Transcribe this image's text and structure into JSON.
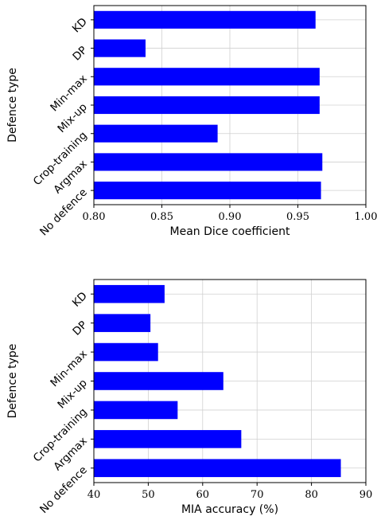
{
  "chart_data": [
    {
      "type": "bar",
      "orientation": "horizontal",
      "categories": [
        "KD",
        "DP",
        "Min-max",
        "Mix-up",
        "Crop-training",
        "Argmax",
        "No defence"
      ],
      "values": [
        0.963,
        0.838,
        0.966,
        0.966,
        0.891,
        0.968,
        0.967
      ],
      "xlim": [
        0.8,
        1.0
      ],
      "xticks": [
        0.8,
        0.85,
        0.9,
        0.95,
        1.0
      ],
      "xtick_labels": [
        "0.80",
        "0.85",
        "0.90",
        "0.95",
        "1.00"
      ],
      "xlabel": "Mean Dice coefficient",
      "ylabel": "Defence type",
      "grid": true,
      "bar_color": "#0000ff"
    },
    {
      "type": "bar",
      "orientation": "horizontal",
      "categories": [
        "KD",
        "DP",
        "Min-max",
        "Mix-up",
        "Crop-training",
        "Argmax",
        "No defence"
      ],
      "values": [
        53.0,
        50.4,
        51.8,
        63.8,
        55.4,
        67.1,
        85.4
      ],
      "xlim": [
        40,
        90
      ],
      "xticks": [
        40,
        50,
        60,
        70,
        80,
        90
      ],
      "xtick_labels": [
        "40",
        "50",
        "60",
        "70",
        "80",
        "90"
      ],
      "xlabel": "MIA accuracy (%)",
      "ylabel": "Defence type",
      "grid": true,
      "bar_color": "#0000ff"
    }
  ]
}
